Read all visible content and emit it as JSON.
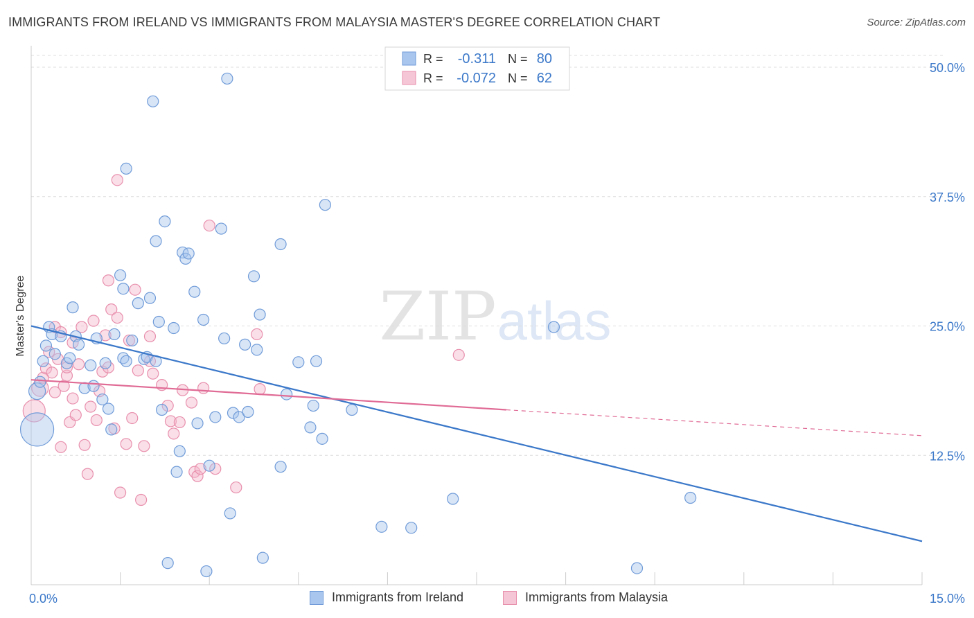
{
  "header": {
    "title": "IMMIGRANTS FROM IRELAND VS IMMIGRANTS FROM MALAYSIA MASTER'S DEGREE CORRELATION CHART",
    "source": "Source: ZipAtlas.com"
  },
  "watermark": {
    "part1": "ZIP",
    "part2": "atlas"
  },
  "colors": {
    "ireland": "#a9c6ee",
    "ireland_edge": "#6f9bd8",
    "ireland_line": "#3b78c9",
    "malaysia": "#f5b9cc",
    "malaysia_edge": "#e88fac",
    "malaysia_line": "#e06b95",
    "accent_text": "#3b78c9",
    "grid": "#dcdcdc"
  },
  "legend": {
    "rows": [
      {
        "r_label": "R =",
        "r_value": "-0.311",
        "n_label": "N =",
        "n_value": "80"
      },
      {
        "r_label": "R =",
        "r_value": "-0.072",
        "n_label": "N =",
        "n_value": "62"
      }
    ]
  },
  "chart_data": {
    "type": "scatter",
    "ylabel": "Master's Degree",
    "x_tick_labels": [
      "0.0%",
      "15.0%"
    ],
    "y_tick_labels": [
      "12.5%",
      "25.0%",
      "37.5%",
      "50.0%"
    ],
    "xlim": [
      0,
      15
    ],
    "ylim": [
      0,
      50
    ],
    "y_ticks": [
      12.5,
      25,
      37.5,
      50
    ],
    "grid": true,
    "legend_placement": "top-center",
    "series": [
      {
        "name": "Immigrants from Ireland",
        "trend": {
          "x": [
            0,
            15
          ],
          "y": [
            25.0,
            4.2
          ]
        },
        "points": [
          [
            0.1,
            15.0,
            3
          ],
          [
            0.1,
            18.7,
            1.5
          ],
          [
            0.15,
            19.6,
            1
          ],
          [
            0.2,
            21.6,
            1
          ],
          [
            0.25,
            23.1,
            1
          ],
          [
            0.3,
            24.9,
            1
          ],
          [
            0.35,
            24.2,
            1
          ],
          [
            0.4,
            22.3,
            1
          ],
          [
            0.5,
            24.0,
            1
          ],
          [
            0.6,
            21.4,
            1
          ],
          [
            0.65,
            21.9,
            1
          ],
          [
            0.7,
            26.8,
            1
          ],
          [
            0.75,
            24.0,
            1
          ],
          [
            0.8,
            23.2,
            1
          ],
          [
            0.9,
            19.0,
            1
          ],
          [
            1.0,
            21.2,
            1
          ],
          [
            1.05,
            19.2,
            1
          ],
          [
            1.1,
            23.8,
            1
          ],
          [
            1.2,
            17.9,
            1
          ],
          [
            1.25,
            21.4,
            1
          ],
          [
            1.3,
            17.0,
            1
          ],
          [
            1.35,
            15.0,
            1
          ],
          [
            1.4,
            24.2,
            1
          ],
          [
            1.5,
            29.9,
            1
          ],
          [
            1.55,
            28.6,
            1
          ],
          [
            1.55,
            21.9,
            1
          ],
          [
            1.6,
            40.2,
            1
          ],
          [
            1.6,
            21.6,
            1
          ],
          [
            1.7,
            23.6,
            1
          ],
          [
            1.8,
            27.2,
            1
          ],
          [
            1.9,
            21.8,
            1
          ],
          [
            1.95,
            22.0,
            1
          ],
          [
            2.0,
            27.7,
            1
          ],
          [
            2.1,
            21.6,
            1
          ],
          [
            2.05,
            46.7,
            1
          ],
          [
            2.1,
            33.2,
            1
          ],
          [
            2.15,
            25.4,
            1
          ],
          [
            2.2,
            16.9,
            1
          ],
          [
            2.25,
            35.1,
            1
          ],
          [
            2.3,
            2.1,
            1
          ],
          [
            2.4,
            24.8,
            1
          ],
          [
            2.45,
            10.9,
            1
          ],
          [
            2.5,
            12.9,
            1
          ],
          [
            2.55,
            32.1,
            1
          ],
          [
            2.6,
            31.5,
            1
          ],
          [
            2.65,
            32.0,
            1
          ],
          [
            2.75,
            28.3,
            1
          ],
          [
            2.8,
            15.6,
            1
          ],
          [
            2.9,
            25.6,
            1
          ],
          [
            2.95,
            1.3,
            1
          ],
          [
            3.0,
            11.5,
            1
          ],
          [
            3.1,
            16.2,
            1
          ],
          [
            3.2,
            34.4,
            1
          ],
          [
            3.25,
            23.8,
            1
          ],
          [
            3.3,
            48.9,
            1
          ],
          [
            3.35,
            6.9,
            1
          ],
          [
            3.4,
            16.6,
            1
          ],
          [
            3.5,
            16.2,
            1
          ],
          [
            3.6,
            23.2,
            1
          ],
          [
            3.65,
            16.7,
            1
          ],
          [
            3.75,
            29.8,
            1
          ],
          [
            3.8,
            22.7,
            1
          ],
          [
            3.85,
            26.1,
            1
          ],
          [
            3.9,
            2.6,
            1
          ],
          [
            4.2,
            11.4,
            1
          ],
          [
            4.2,
            32.9,
            1
          ],
          [
            4.3,
            18.4,
            1
          ],
          [
            4.5,
            21.5,
            1
          ],
          [
            4.7,
            15.2,
            1
          ],
          [
            4.75,
            17.3,
            1
          ],
          [
            4.8,
            21.6,
            1
          ],
          [
            4.9,
            14.1,
            1
          ],
          [
            4.95,
            36.7,
            1
          ],
          [
            5.4,
            16.9,
            1
          ],
          [
            5.9,
            5.6,
            1
          ],
          [
            6.4,
            5.5,
            1
          ],
          [
            7.1,
            8.3,
            1
          ],
          [
            8.8,
            24.9,
            1
          ],
          [
            10.2,
            1.6,
            1
          ],
          [
            11.1,
            8.4,
            1
          ]
        ]
      },
      {
        "name": "Immigrants from Malaysia",
        "trend": {
          "x": [
            0,
            8.0
          ],
          "y": [
            19.8,
            16.9
          ]
        },
        "trend_extension": {
          "x": [
            8.0,
            15
          ],
          "y": [
            16.9,
            14.4
          ]
        },
        "points": [
          [
            0.05,
            16.8,
            2
          ],
          [
            0.15,
            19.0,
            1.5
          ],
          [
            0.2,
            20.0,
            1
          ],
          [
            0.25,
            20.9,
            1
          ],
          [
            0.3,
            22.5,
            1
          ],
          [
            0.35,
            20.5,
            1
          ],
          [
            0.4,
            24.9,
            1
          ],
          [
            0.45,
            21.8,
            1
          ],
          [
            0.5,
            24.4,
            1
          ],
          [
            0.5,
            13.3,
            1
          ],
          [
            0.6,
            20.2,
            1
          ],
          [
            0.6,
            21.0,
            1
          ],
          [
            0.65,
            15.7,
            1
          ],
          [
            0.7,
            18.0,
            1
          ],
          [
            0.7,
            23.4,
            1
          ],
          [
            0.75,
            16.4,
            1
          ],
          [
            0.8,
            21.3,
            1
          ],
          [
            0.85,
            24.9,
            1
          ],
          [
            0.9,
            13.5,
            1
          ],
          [
            0.95,
            10.7,
            1
          ],
          [
            1.0,
            17.2,
            1
          ],
          [
            1.05,
            25.5,
            1
          ],
          [
            1.1,
            15.9,
            1
          ],
          [
            1.15,
            18.7,
            1
          ],
          [
            1.2,
            20.6,
            1
          ],
          [
            1.25,
            24.1,
            1
          ],
          [
            1.3,
            29.4,
            1
          ],
          [
            1.35,
            26.6,
            1
          ],
          [
            1.4,
            15.1,
            1
          ],
          [
            1.45,
            25.8,
            1
          ],
          [
            1.45,
            39.1,
            1
          ],
          [
            1.5,
            8.9,
            1
          ],
          [
            1.6,
            13.6,
            1
          ],
          [
            1.65,
            23.6,
            1
          ],
          [
            1.7,
            16.1,
            1
          ],
          [
            1.75,
            28.5,
            1
          ],
          [
            1.8,
            20.7,
            1
          ],
          [
            1.85,
            8.2,
            1
          ],
          [
            1.9,
            13.4,
            1
          ],
          [
            2.0,
            24.0,
            1
          ],
          [
            2.05,
            20.4,
            1
          ],
          [
            2.2,
            19.3,
            1
          ],
          [
            2.3,
            17.3,
            1
          ],
          [
            2.35,
            15.8,
            1
          ],
          [
            2.4,
            14.6,
            1
          ],
          [
            2.5,
            15.7,
            1
          ],
          [
            2.55,
            18.8,
            1
          ],
          [
            2.7,
            17.6,
            1
          ],
          [
            2.75,
            10.9,
            1
          ],
          [
            2.8,
            10.5,
            1
          ],
          [
            2.85,
            11.2,
            1
          ],
          [
            2.9,
            19.0,
            1
          ],
          [
            3.0,
            34.7,
            1
          ],
          [
            3.1,
            11.2,
            1
          ],
          [
            3.45,
            9.4,
            1
          ],
          [
            3.8,
            24.2,
            1
          ],
          [
            3.85,
            18.9,
            1
          ],
          [
            7.2,
            22.2,
            1
          ],
          [
            0.55,
            19.2,
            1
          ],
          [
            1.3,
            21.0,
            1
          ],
          [
            2.0,
            21.6,
            1
          ],
          [
            0.4,
            18.6,
            1
          ]
        ]
      }
    ]
  }
}
